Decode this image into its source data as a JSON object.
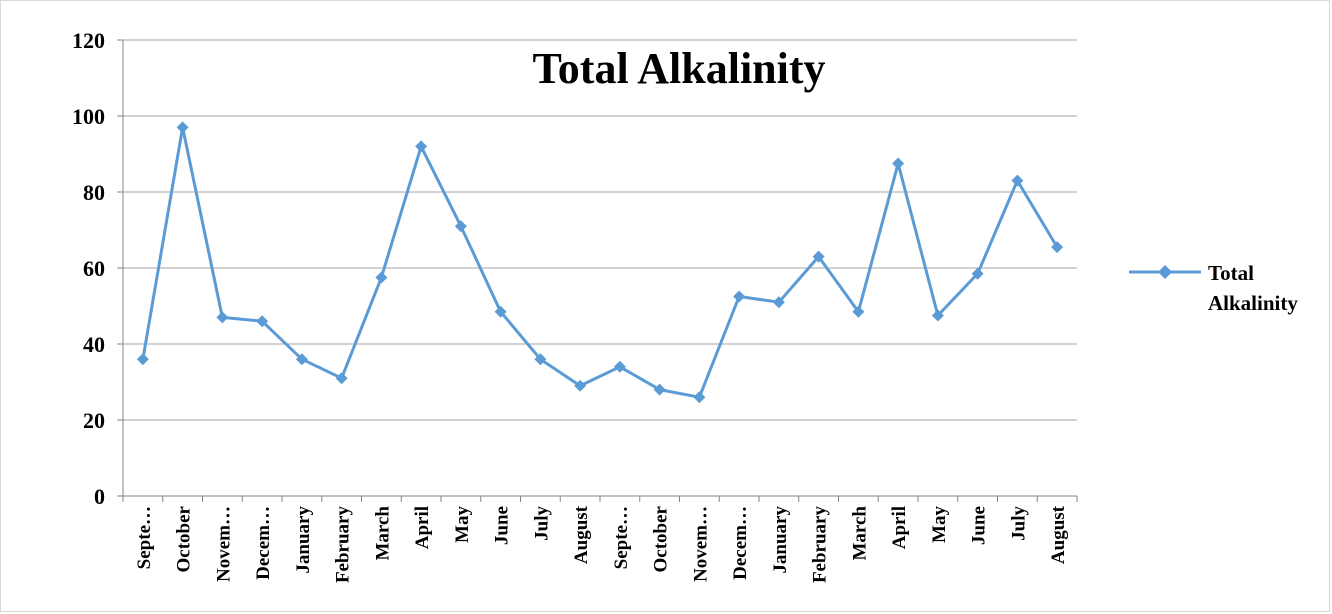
{
  "chart_data": {
    "type": "line",
    "title": "Total Alkalinity",
    "xlabel": "",
    "ylabel": "",
    "ylim": [
      0,
      120
    ],
    "yticks": [
      "0",
      "20",
      "40",
      "60",
      "80",
      "100",
      "120"
    ],
    "grid": true,
    "legend_position": "right",
    "colors": {
      "series": "#5b9bd5",
      "grid": "#a6a6a6",
      "axis": "#868686"
    },
    "categories": [
      "Septe…",
      "October",
      "Novem…",
      "Decem…",
      "January",
      "February",
      "March",
      "April",
      "May",
      "June",
      "July",
      "August",
      "Septe…",
      "October",
      "Novem…",
      "Decem…",
      "January",
      "February",
      "March",
      "April",
      "May",
      "June",
      "July",
      "August"
    ],
    "series": [
      {
        "name": "Total Alkalinity",
        "legend_lines": [
          "Total",
          "Alkalinity"
        ],
        "marker": "diamond",
        "values": [
          36,
          97,
          47,
          46,
          36,
          31,
          57.5,
          92,
          71,
          48.5,
          36,
          29,
          34,
          28,
          26,
          52.5,
          51,
          63,
          48.5,
          87.5,
          47.5,
          58.5,
          83,
          65.5
        ]
      }
    ]
  }
}
